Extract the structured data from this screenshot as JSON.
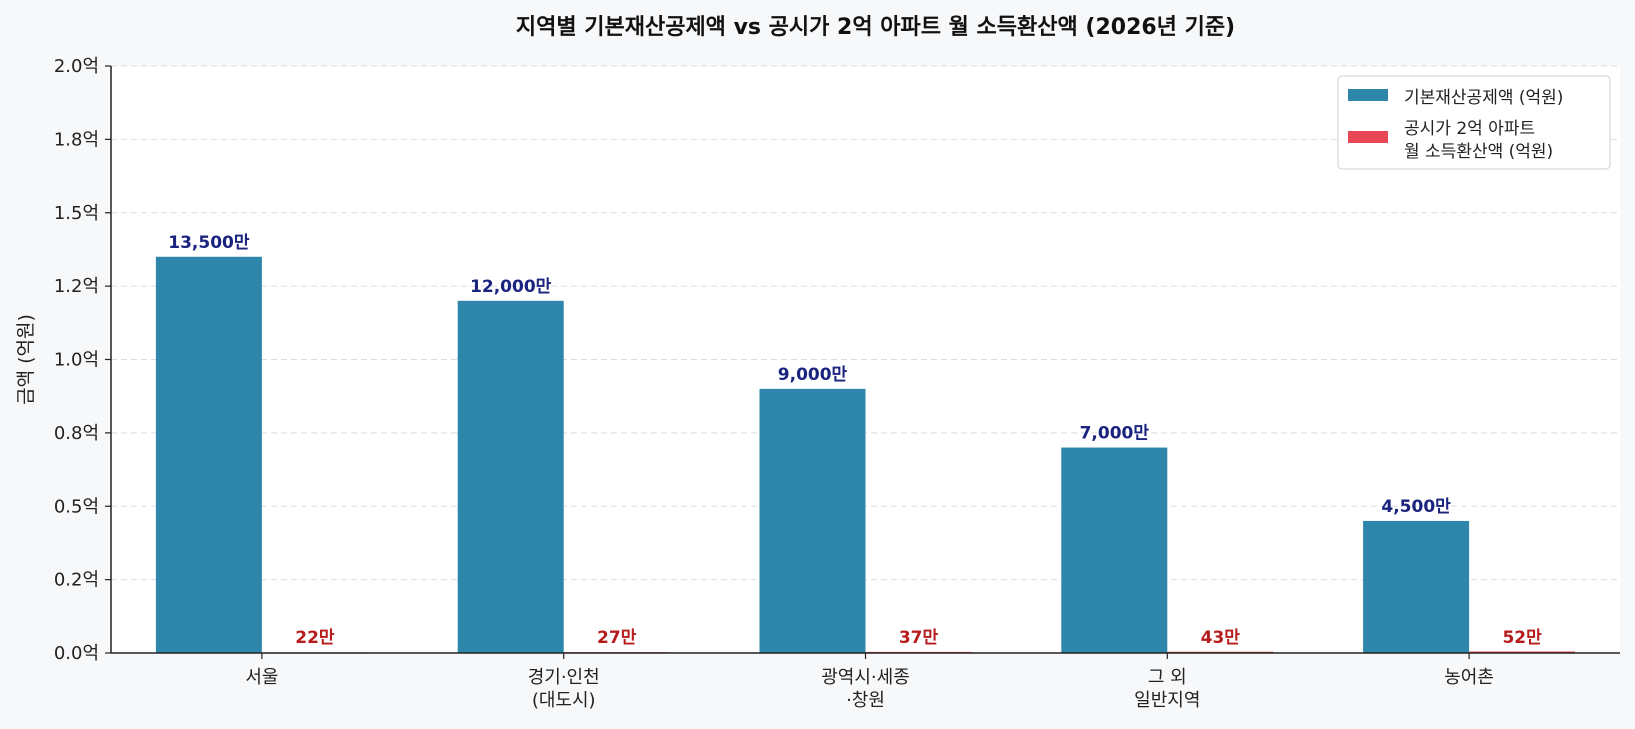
{
  "chart_data": {
    "type": "bar",
    "title": "지역별 기본재산공제액 vs 공시가 2억 아파트 월 소득환산액 (2026년 기준)",
    "ylabel": "금액 (억원)",
    "ylim": [
      0,
      2.0
    ],
    "yticks": [
      "0.0억",
      "0.2억",
      "0.5억",
      "0.8억",
      "1.0억",
      "1.2억",
      "1.5억",
      "1.8억",
      "2.0억"
    ],
    "grid": true,
    "legend_position": "top-right",
    "categories": [
      [
        "서울"
      ],
      [
        "경기·인천",
        "(대도시)"
      ],
      [
        "광역시·세종",
        "·창원"
      ],
      [
        "그 외",
        "일반지역"
      ],
      [
        "농어촌"
      ]
    ],
    "series": [
      {
        "name": "기본재산공제액 (억원)",
        "color": "#2e86ab",
        "values": [
          1.35,
          1.2,
          0.9,
          0.7,
          0.45
        ],
        "labels": [
          "13,500만",
          "12,000만",
          "9,000만",
          "7,000만",
          "4,500만"
        ],
        "label_color": "#1a237e"
      },
      {
        "name": "공시가 2억 아파트\n월 소득환산액 (억원)",
        "color": "#e84855",
        "values": [
          0.0022,
          0.0027,
          0.0037,
          0.0043,
          0.0052
        ],
        "labels": [
          "22만",
          "27만",
          "37만",
          "43만",
          "52만"
        ],
        "label_color": "#b71c1c"
      }
    ]
  }
}
